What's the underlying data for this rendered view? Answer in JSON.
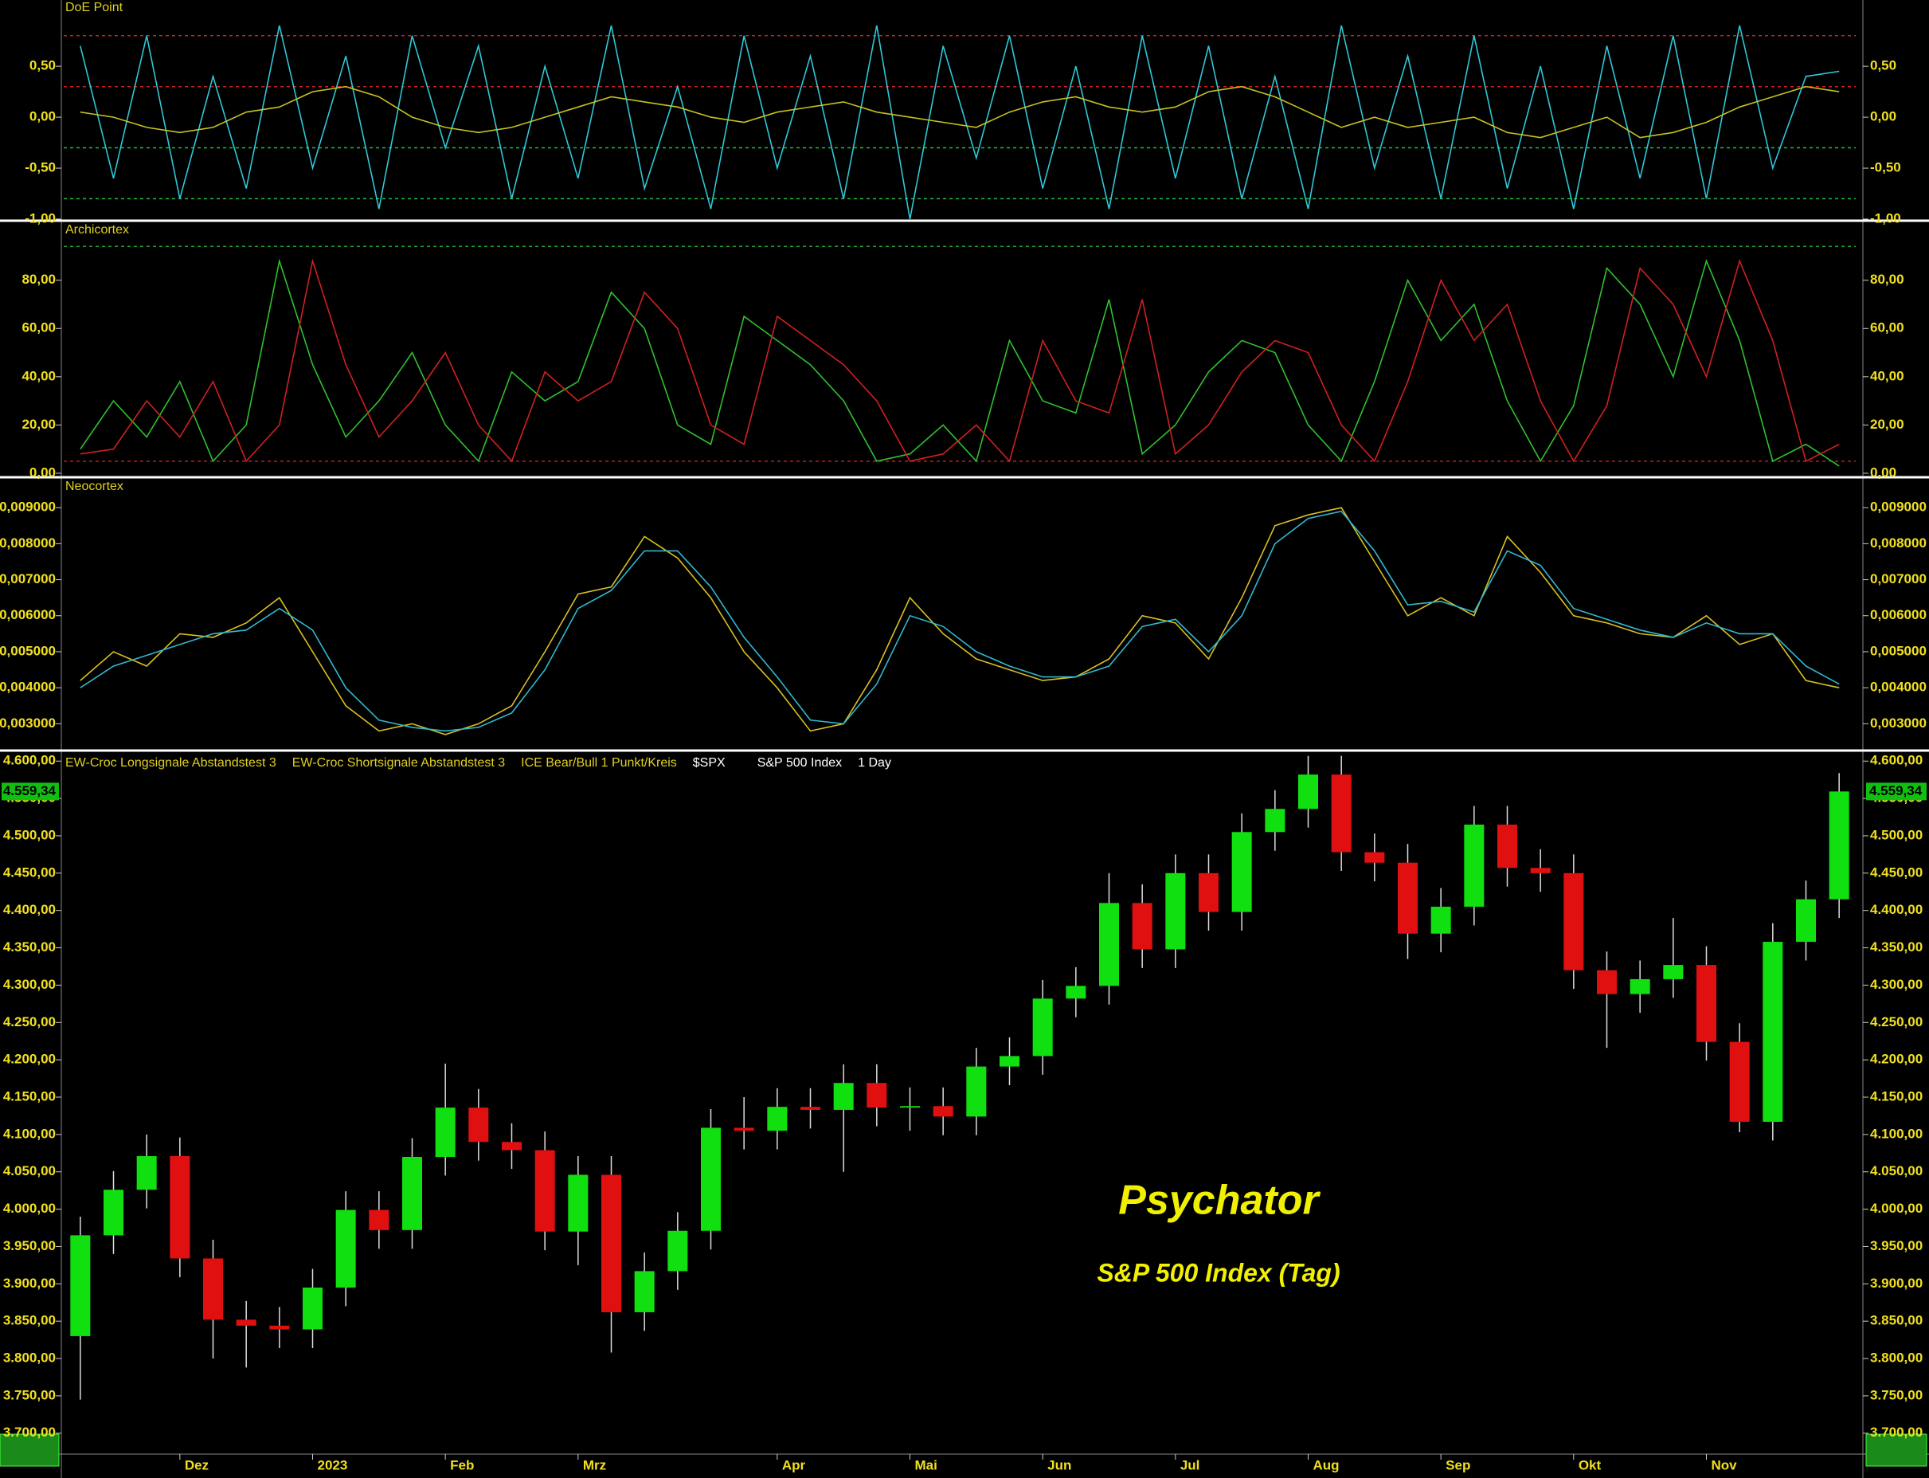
{
  "chart_data": [
    {
      "type": "line",
      "title": "DoE Point",
      "ylim": [
        -1.0,
        1.15
      ],
      "yticks": [
        {
          "value": 0.5,
          "label": "0,50"
        },
        {
          "value": 0,
          "label": "0,00"
        },
        {
          "value": -0.5,
          "label": "-0,50"
        },
        {
          "value": -1,
          "label": "-1,00"
        }
      ],
      "levels": [
        {
          "value": 0.8,
          "color": "#d02020"
        },
        {
          "value": 0.3,
          "color": "#d02020"
        },
        {
          "value": -0.3,
          "color": "#20c040"
        },
        {
          "value": -0.8,
          "color": "#20c040"
        }
      ],
      "series": [
        {
          "color": "#2fc8d8",
          "values": [
            0.7,
            -0.6,
            0.8,
            -0.8,
            0.4,
            -0.7,
            0.9,
            -0.5,
            0.6,
            -0.9,
            0.8,
            -0.3,
            0.7,
            -0.8,
            0.5,
            -0.6,
            0.9,
            -0.7,
            0.3,
            -0.9,
            0.8,
            -0.5,
            0.6,
            -0.8,
            0.9,
            -1.0,
            0.7,
            -0.4,
            0.8,
            -0.7,
            0.5,
            -0.9,
            0.8,
            -0.6,
            0.7,
            -0.8,
            0.4,
            -0.9,
            0.9,
            -0.5,
            0.6,
            -0.8,
            0.8,
            -0.7,
            0.5,
            -0.9,
            0.7,
            -0.6,
            0.8,
            -0.8,
            0.9,
            -0.5,
            0.4,
            0.45
          ]
        },
        {
          "color": "#c8c020",
          "values": [
            0.05,
            0.0,
            -0.1,
            -0.15,
            -0.1,
            0.05,
            0.1,
            0.25,
            0.3,
            0.2,
            0.0,
            -0.1,
            -0.15,
            -0.1,
            0.0,
            0.1,
            0.2,
            0.15,
            0.1,
            0.0,
            -0.05,
            0.05,
            0.1,
            0.15,
            0.05,
            0.0,
            -0.05,
            -0.1,
            0.05,
            0.15,
            0.2,
            0.1,
            0.05,
            0.1,
            0.25,
            0.3,
            0.2,
            0.05,
            -0.1,
            0.0,
            -0.1,
            -0.05,
            0.0,
            -0.15,
            -0.2,
            -0.1,
            0.0,
            -0.2,
            -0.15,
            -0.05,
            0.1,
            0.2,
            0.3,
            0.25
          ]
        }
      ]
    },
    {
      "type": "line",
      "title": "Archicortex",
      "ylim": [
        -1,
        104
      ],
      "yticks": [
        {
          "value": 0,
          "label": "0,00"
        },
        {
          "value": 20,
          "label": "20,00"
        },
        {
          "value": 40,
          "label": "40,00"
        },
        {
          "value": 60,
          "label": "60,00"
        },
        {
          "value": 80,
          "label": "80,00"
        }
      ],
      "levels": [
        {
          "value": 94,
          "color": "#20a030"
        },
        {
          "value": 5,
          "color": "#c02020"
        }
      ],
      "series": [
        {
          "color": "#30c030",
          "values": [
            10,
            30,
            15,
            38,
            5,
            20,
            88,
            45,
            15,
            30,
            50,
            20,
            5,
            42,
            30,
            38,
            75,
            60,
            20,
            12,
            65,
            55,
            45,
            30,
            5,
            8,
            20,
            5,
            55,
            30,
            25,
            72,
            8,
            20,
            42,
            55,
            50,
            20,
            5,
            38,
            80,
            55,
            70,
            30,
            5,
            28,
            85,
            70,
            40,
            88,
            55,
            5,
            12,
            3
          ]
        },
        {
          "color": "#d02020",
          "values": [
            8,
            10,
            30,
            15,
            38,
            5,
            20,
            88,
            45,
            15,
            30,
            50,
            20,
            5,
            42,
            30,
            38,
            75,
            60,
            20,
            12,
            65,
            55,
            45,
            30,
            5,
            8,
            20,
            5,
            55,
            30,
            25,
            72,
            8,
            20,
            42,
            55,
            50,
            20,
            5,
            38,
            80,
            55,
            70,
            30,
            5,
            28,
            85,
            70,
            40,
            88,
            55,
            5,
            12
          ]
        }
      ]
    },
    {
      "type": "line",
      "title": "Neocortex",
      "ylim": [
        0.0023,
        0.0098
      ],
      "yticks": [
        {
          "value": 0.003,
          "label": "0,003000"
        },
        {
          "value": 0.004,
          "label": "0,004000"
        },
        {
          "value": 0.005,
          "label": "0,005000"
        },
        {
          "value": 0.006,
          "label": "0,006000"
        },
        {
          "value": 0.007,
          "label": "0,007000"
        },
        {
          "value": 0.008,
          "label": "0,008000"
        },
        {
          "value": 0.009,
          "label": "0,009000"
        }
      ],
      "levels": [],
      "series": [
        {
          "color": "#d8c020",
          "values": [
            0.0042,
            0.005,
            0.0046,
            0.0055,
            0.0054,
            0.0058,
            0.0065,
            0.005,
            0.0035,
            0.0028,
            0.003,
            0.0027,
            0.003,
            0.0035,
            0.005,
            0.0066,
            0.0068,
            0.0082,
            0.0076,
            0.0065,
            0.005,
            0.004,
            0.0028,
            0.003,
            0.0045,
            0.0065,
            0.0055,
            0.0048,
            0.0045,
            0.0042,
            0.0043,
            0.0048,
            0.006,
            0.0058,
            0.0048,
            0.0065,
            0.0085,
            0.0088,
            0.009,
            0.0075,
            0.006,
            0.0065,
            0.006,
            0.0082,
            0.0072,
            0.006,
            0.0058,
            0.0055,
            0.0054,
            0.006,
            0.0052,
            0.0055,
            0.0042,
            0.004
          ]
        },
        {
          "color": "#30b8d0",
          "values": [
            0.004,
            0.0046,
            0.0049,
            0.0052,
            0.0055,
            0.0056,
            0.0062,
            0.0056,
            0.004,
            0.0031,
            0.0029,
            0.0028,
            0.0029,
            0.0033,
            0.0045,
            0.0062,
            0.0067,
            0.0078,
            0.0078,
            0.0068,
            0.0054,
            0.0043,
            0.0031,
            0.003,
            0.0041,
            0.006,
            0.0057,
            0.005,
            0.0046,
            0.0043,
            0.0043,
            0.0046,
            0.0057,
            0.0059,
            0.005,
            0.006,
            0.008,
            0.0087,
            0.0089,
            0.0078,
            0.0063,
            0.0064,
            0.0061,
            0.0078,
            0.0074,
            0.0062,
            0.0059,
            0.0056,
            0.0054,
            0.0058,
            0.0055,
            0.0055,
            0.0046,
            0.0041
          ]
        }
      ]
    },
    {
      "type": "candlestick",
      "ylim": [
        3672,
        4612
      ],
      "legend_items": [
        "EW-Croc Longsignale Abstandstest 3",
        "EW-Croc Shortsignale Abstandstest 3",
        "ICE Bear/Bull 1 Punkt/Kreis",
        "$SPX",
        "S&P 500 Index",
        "1 Day"
      ],
      "annotations": [
        "Psychator",
        "S&P 500 Index (Tag)"
      ],
      "last_price": {
        "value": 4559.34,
        "label": "4.559,34"
      },
      "up_color": "#10e010",
      "down_color": "#e01010",
      "yticks": [
        {
          "value": 3700,
          "label": "3.700,00"
        },
        {
          "value": 3750,
          "label": "3.750,00"
        },
        {
          "value": 3800,
          "label": "3.800,00"
        },
        {
          "value": 3850,
          "label": "3.850,00"
        },
        {
          "value": 3900,
          "label": "3.900,00"
        },
        {
          "value": 3950,
          "label": "3.950,00"
        },
        {
          "value": 4000,
          "label": "4.000,00"
        },
        {
          "value": 4050,
          "label": "4.050,00"
        },
        {
          "value": 4100,
          "label": "4.100,00"
        },
        {
          "value": 4150,
          "label": "4.150,00"
        },
        {
          "value": 4200,
          "label": "4.200,00"
        },
        {
          "value": 4250,
          "label": "4.250,00"
        },
        {
          "value": 4300,
          "label": "4.300,00"
        },
        {
          "value": 4350,
          "label": "4.350,00"
        },
        {
          "value": 4400,
          "label": "4.400,00"
        },
        {
          "value": 4450,
          "label": "4.450,00"
        },
        {
          "value": 4500,
          "label": "4.500,00"
        },
        {
          "value": 4550,
          "label": "4.550,00"
        },
        {
          "value": 4600,
          "label": "4.600,00"
        }
      ],
      "categories": [
        null,
        null,
        null,
        "Dez",
        null,
        null,
        null,
        "2023",
        null,
        null,
        null,
        "Feb",
        null,
        null,
        null,
        "Mrz",
        null,
        null,
        null,
        null,
        null,
        "Apr",
        null,
        null,
        null,
        "Mai",
        null,
        null,
        null,
        "Jun",
        null,
        null,
        null,
        "Jul",
        null,
        null,
        null,
        "Aug",
        null,
        null,
        null,
        "Sep",
        null,
        null,
        null,
        "Okt",
        null,
        null,
        null,
        "Nov",
        null,
        null,
        null,
        null
      ],
      "open": [
        3830,
        3965,
        4026,
        4071,
        3934,
        3852,
        3844,
        3839,
        3895,
        3999,
        3972,
        4070,
        4136,
        4090,
        4079,
        3970,
        4046,
        3862,
        3917,
        3971,
        4109,
        4105,
        4137,
        4133,
        4169,
        4136,
        4138,
        4124,
        4191,
        4205,
        4282,
        4299,
        4410,
        4348,
        4450,
        4398,
        4505,
        4536,
        4582,
        4478,
        4464,
        4369,
        4405,
        4515,
        4457,
        4450,
        4320,
        4288,
        4308,
        4327,
        4224,
        4117,
        4358,
        4415
      ],
      "high": [
        3990,
        4051,
        4100,
        4096,
        3959,
        3877,
        3869,
        3920,
        4024,
        4024,
        4095,
        4195,
        4161,
        4115,
        4104,
        4071,
        4071,
        3942,
        3996,
        4134,
        4150,
        4162,
        4162,
        4194,
        4194,
        4163,
        4163,
        4216,
        4230,
        4307,
        4324,
        4450,
        4435,
        4475,
        4475,
        4530,
        4561,
        4607,
        4607,
        4503,
        4489,
        4430,
        4540,
        4540,
        4482,
        4475,
        4345,
        4333,
        4390,
        4352,
        4249,
        4383,
        4440,
        4584
      ],
      "low": [
        3745,
        3940,
        4001,
        3909,
        3800,
        3788,
        3814,
        3814,
        3870,
        3947,
        3947,
        4045,
        4065,
        4054,
        3945,
        3925,
        3808,
        3837,
        3892,
        3946,
        4080,
        4080,
        4108,
        4050,
        4111,
        4105,
        4099,
        4099,
        4166,
        4180,
        4257,
        4274,
        4323,
        4323,
        4373,
        4373,
        4480,
        4511,
        4453,
        4439,
        4335,
        4344,
        4380,
        4432,
        4425,
        4295,
        4216,
        4263,
        4283,
        4199,
        4103,
        4092,
        4333,
        4390
      ],
      "close": [
        3965,
        4026,
        4071,
        3934,
        3852,
        3844,
        3839,
        3895,
        3999,
        3972,
        4070,
        4136,
        4090,
        4079,
        3970,
        4046,
        3862,
        3917,
        3971,
        4109,
        4105,
        4137,
        4133,
        4169,
        4136,
        4138,
        4124,
        4191,
        4205,
        4282,
        4299,
        4410,
        4348,
        4450,
        4398,
        4505,
        4536,
        4582,
        4478,
        4464,
        4369,
        4405,
        4515,
        4457,
        4450,
        4320,
        4288,
        4308,
        4327,
        4224,
        4117,
        4358,
        4415,
        4559.34
      ]
    }
  ]
}
